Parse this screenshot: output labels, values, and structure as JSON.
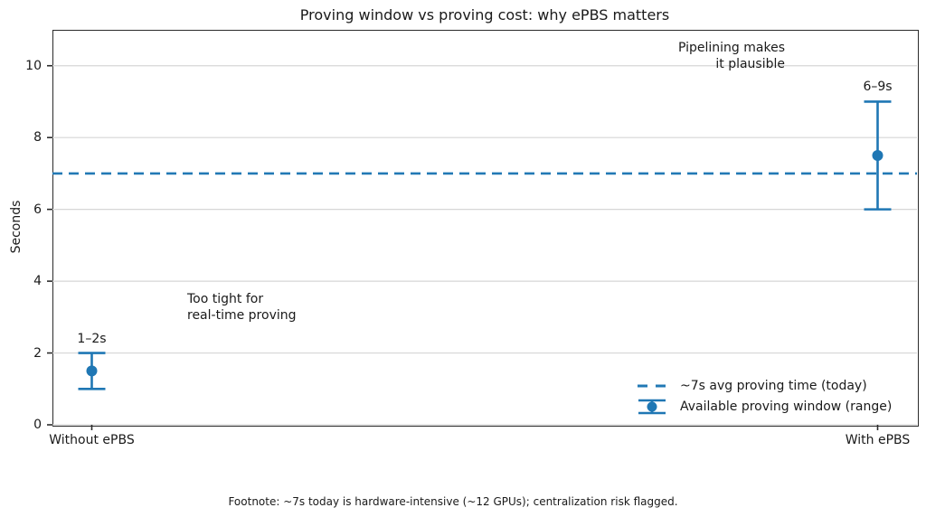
{
  "figure": {
    "footnote": "Footnote: ~7s today is hardware-intensive (~12 GPUs); centralization risk flagged."
  },
  "chart_data": {
    "type": "scatter",
    "subtype": "errorbar",
    "title": "Proving window vs proving cost: why ePBS matters",
    "xlabel": "",
    "ylabel": "Seconds",
    "categories": [
      "Without ePBS",
      "With ePBS"
    ],
    "series": [
      {
        "name": "Available proving window (range)",
        "marker": "circle",
        "points": [
          {
            "category": "Without ePBS",
            "y": 1.5,
            "ylow": 1,
            "yhigh": 2,
            "label": "1–2s"
          },
          {
            "category": "With ePBS",
            "y": 7.5,
            "ylow": 6,
            "yhigh": 9,
            "label": "6–9s"
          }
        ]
      }
    ],
    "reference_line": {
      "y": 7,
      "style": "dashed",
      "label": "~7s avg proving time (today)"
    },
    "yticks": [
      0,
      2,
      4,
      6,
      8,
      10
    ],
    "ylim": [
      0,
      11
    ],
    "grid": "horizontal",
    "legend_position": "lower right",
    "legend_frame": false,
    "annotations": [
      {
        "lines": [
          "Too tight for",
          "real-time proving"
        ],
        "align": "left"
      },
      {
        "lines": [
          "Pipelining makes",
          "it plausible"
        ],
        "align": "right"
      }
    ],
    "colors": {
      "series": "#1f77b4",
      "reference": "#2279b5",
      "grid": "#d6d6d6",
      "spine": "#2b2b2b",
      "text": "#1a1a1a"
    }
  }
}
